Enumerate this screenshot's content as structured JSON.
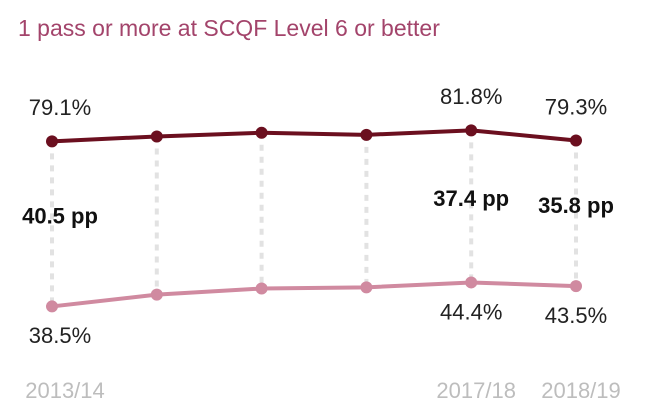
{
  "chart_data": {
    "type": "line",
    "title": "1 pass or more at SCQF Level 6 or better",
    "categories": [
      "2013/14",
      null,
      null,
      null,
      "2017/18",
      "2018/19"
    ],
    "series": [
      {
        "color": "#6b0f1f",
        "values": [
          79.1,
          80.3,
          81.2,
          80.7,
          81.8,
          79.3
        ],
        "value_labels": [
          "79.1%",
          null,
          null,
          null,
          "81.8%",
          "79.3%"
        ]
      },
      {
        "color": "#d08aa0",
        "values": [
          38.5,
          41.4,
          42.9,
          43.2,
          44.4,
          43.5
        ],
        "value_labels": [
          "38.5%",
          null,
          null,
          null,
          "44.4%",
          "43.5%"
        ]
      }
    ],
    "gap_labels": [
      "40.5 pp",
      null,
      null,
      null,
      "37.4 pp",
      "35.8 pp"
    ],
    "ylim": [
      30,
      90
    ]
  }
}
